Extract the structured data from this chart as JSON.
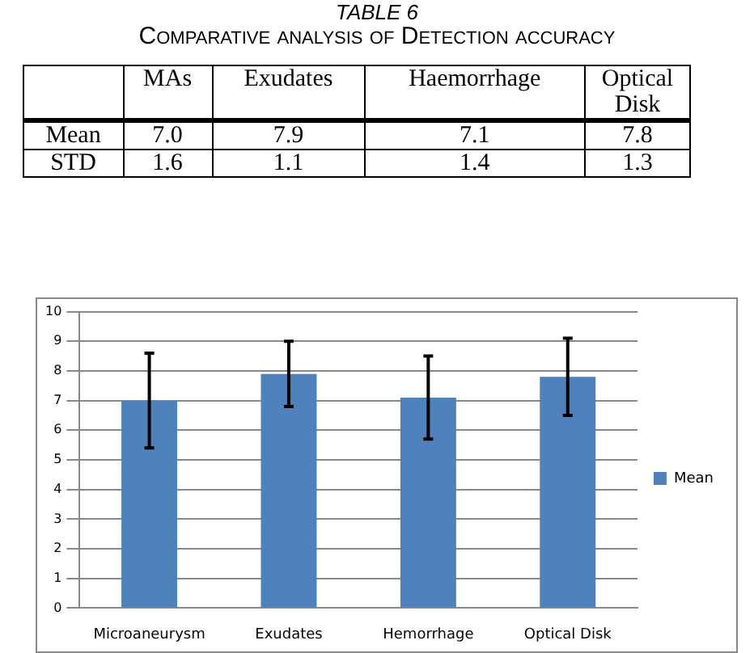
{
  "chart_data": {
    "type": "bar",
    "title": "Comparative analysis of Detection accuracy",
    "annotations": [
      "TABLE 6",
      "MAs",
      "Exudates",
      "Haemorrhage",
      "Optical Disk",
      "Mean",
      "7.0",
      "7.9",
      "7.1",
      "7.8",
      "STD",
      "1.6",
      "1.1",
      "1.4",
      "1.3"
    ],
    "categories": [
      "Microaneurysm",
      "Exudates",
      "Hemorrhage",
      "Optical Disk"
    ],
    "series": [
      {
        "name": "Mean",
        "color": "#4f81bd",
        "values": [
          7.0,
          7.9,
          7.1,
          7.8
        ],
        "errors": [
          1.6,
          1.1,
          1.4,
          1.3
        ]
      }
    ],
    "ylim": [
      0,
      10
    ],
    "yticks": [
      0,
      1,
      2,
      3,
      4,
      5,
      6,
      7,
      8,
      9,
      10
    ],
    "grid": "y",
    "legend": "right"
  }
}
